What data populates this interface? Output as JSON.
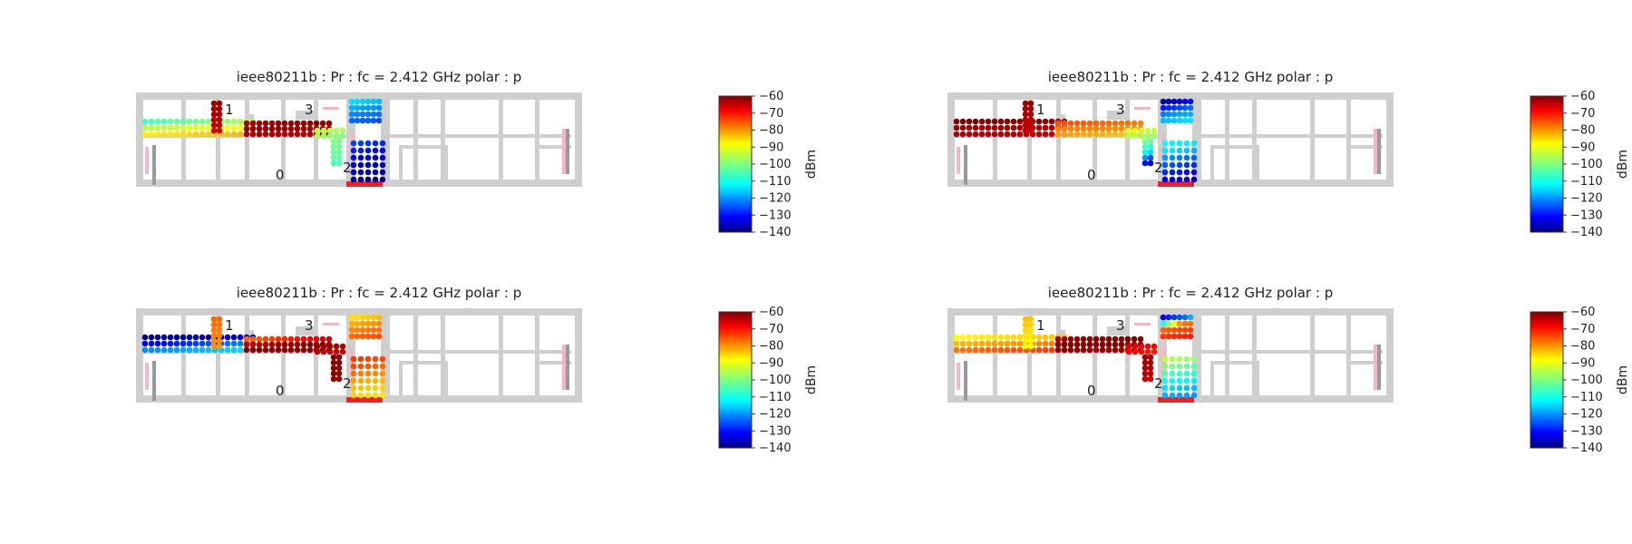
{
  "chart_data": {
    "type": "heatmap",
    "colormap": "jet",
    "colorbar": {
      "vmin": -140,
      "vmax": -60,
      "ticks": [
        "-60",
        "-70",
        "-80",
        "-90",
        "-100",
        "-110",
        "-120",
        "-130",
        "-140"
      ],
      "unit": "dBm"
    },
    "room_labels": [
      "1",
      "3",
      "0",
      "2"
    ],
    "panels": [
      {
        "title": "ieee80211b : Pr :  fc = 2.412 GHz polar : p",
        "series": [
          {
            "region": "corridor-left",
            "values": [
              -105,
              -102,
              -98,
              -95,
              -92,
              -90,
              -88,
              -86,
              -84
            ]
          },
          {
            "region": "corridor-center",
            "values": [
              -63,
              -62,
              -61,
              -62,
              -63,
              -64,
              -64
            ]
          },
          {
            "region": "corridor-right",
            "values": [
              -95,
              -97,
              -100
            ]
          },
          {
            "region": "shaft-right",
            "values": [
              -100,
              -102,
              -104
            ]
          },
          {
            "region": "stair-block-top",
            "values": [
              -112,
              -115,
              -118,
              -120,
              -122,
              -124
            ]
          },
          {
            "region": "stair-block-bottom",
            "values": [
              -125,
              -128,
              -132,
              -135,
              -138,
              -140
            ]
          },
          {
            "region": "room-1-strip",
            "values": [
              -62,
              -64,
              -66
            ]
          }
        ]
      },
      {
        "title": "ieee80211b : Pr :  fc = 2.412 GHz polar : p",
        "series": [
          {
            "region": "corridor-left",
            "values": [
              -60,
              -61,
              -62,
              -63,
              -64,
              -66
            ]
          },
          {
            "region": "corridor-center",
            "values": [
              -76,
              -78,
              -80,
              -80,
              -82,
              -84,
              -86
            ]
          },
          {
            "region": "corridor-right",
            "values": [
              -92,
              -95,
              -98
            ]
          },
          {
            "region": "shaft-right",
            "values": [
              -100,
              -110,
              -135
            ]
          },
          {
            "region": "stair-block-top",
            "values": [
              -138,
              -130,
              -124,
              -118,
              -115,
              -112
            ]
          },
          {
            "region": "stair-block-bottom",
            "values": [
              -110,
              -112,
              -120,
              -125,
              -130,
              -135
            ]
          },
          {
            "region": "room-1-strip",
            "values": [
              -62,
              -64,
              -66
            ]
          }
        ]
      },
      {
        "title": "ieee80211b : Pr :  fc = 2.412 GHz polar : p",
        "series": [
          {
            "region": "corridor-left",
            "values": [
              -140,
              -138,
              -135,
              -130,
              -125,
              -120,
              -118,
              -115,
              -112
            ]
          },
          {
            "region": "corridor-center",
            "values": [
              -78,
              -72,
              -66,
              -62,
              -60,
              -61,
              -62
            ]
          },
          {
            "region": "corridor-right",
            "values": [
              -62,
              -64,
              -66
            ]
          },
          {
            "region": "shaft-right",
            "values": [
              -60,
              -61,
              -62
            ]
          },
          {
            "region": "stair-block-top",
            "values": [
              -88,
              -85,
              -82,
              -80,
              -78,
              -76
            ]
          },
          {
            "region": "stair-block-bottom",
            "values": [
              -74,
              -76,
              -80,
              -84,
              -86,
              -88
            ]
          },
          {
            "region": "room-1-strip",
            "values": [
              -78,
              -80,
              -82
            ]
          }
        ]
      },
      {
        "title": "ieee80211b : Pr :  fc = 2.412 GHz polar : p",
        "series": [
          {
            "region": "corridor-left",
            "values": [
              -90,
              -88,
              -86,
              -84,
              -82,
              -80,
              -78,
              -76,
              -74
            ]
          },
          {
            "region": "corridor-center",
            "values": [
              -62,
              -61,
              -60,
              -60,
              -61,
              -62,
              -62
            ]
          },
          {
            "region": "corridor-right",
            "values": [
              -68,
              -70,
              -72
            ]
          },
          {
            "region": "shaft-right",
            "values": [
              -62,
              -64,
              -66
            ]
          },
          {
            "region": "stair-block-top",
            "values": [
              -130,
              -120,
              -80,
              -76,
              -74,
              -72
            ]
          },
          {
            "region": "stair-block-bottom",
            "values": [
              -95,
              -100,
              -105,
              -110,
              -115,
              -118
            ]
          },
          {
            "region": "room-1-strip",
            "values": [
              -85,
              -88,
              -90
            ]
          }
        ]
      }
    ]
  }
}
